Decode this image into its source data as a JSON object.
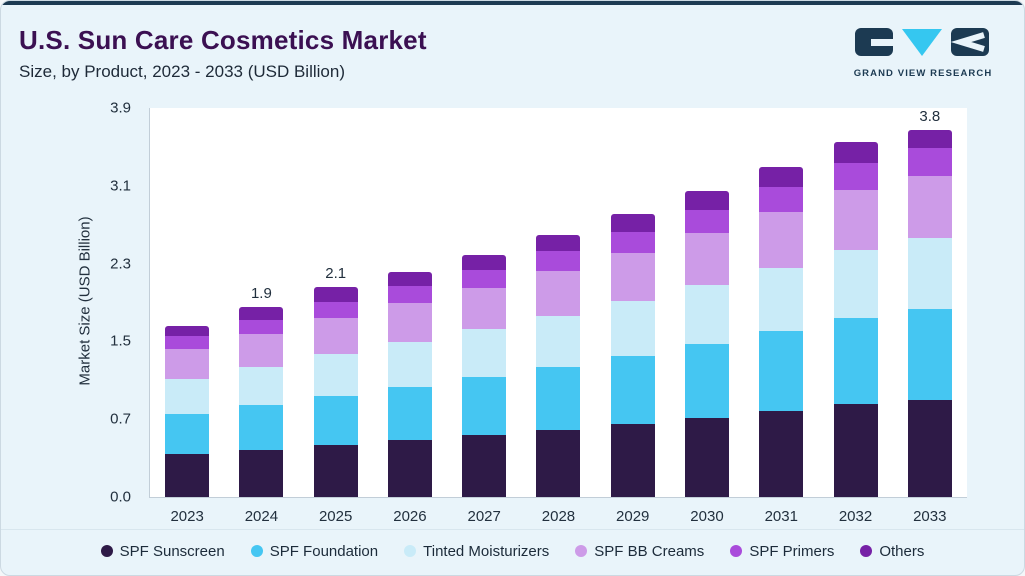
{
  "header": {
    "title": "U.S. Sun Care Cosmetics Market",
    "subtitle": "Size, by Product, 2023 - 2033 (USD Billion)",
    "logo_text": "GRAND VIEW RESEARCH"
  },
  "colors": {
    "accent_bar": "#1C3A52",
    "card_background": "#E9F4FA",
    "title": "#3B1052",
    "logo_navy": "#1C3A52",
    "logo_cyan": "#35C7F0"
  },
  "chart_data": {
    "type": "bar",
    "stacked": true,
    "title": "U.S. Sun Care Cosmetics Market",
    "subtitle": "Size, by Product, 2023 - 2033 (USD Billion)",
    "ylabel": "Market Size (USD Billion)",
    "xlabel": "",
    "ylim": [
      0,
      3.9
    ],
    "y_ticks": [
      "3.9",
      "3.1",
      "2.3",
      "1.5",
      "0.7",
      "0.0"
    ],
    "grid": false,
    "legend_position": "bottom",
    "categories": [
      "2023",
      "2024",
      "2025",
      "2026",
      "2027",
      "2028",
      "2029",
      "2030",
      "2031",
      "2032",
      "2033"
    ],
    "series": [
      {
        "name": "SPF Sunscreen",
        "color": "#2E1A47",
        "values": [
          0.43,
          0.47,
          0.52,
          0.57,
          0.62,
          0.67,
          0.73,
          0.79,
          0.86,
          0.93,
          1.01
        ]
      },
      {
        "name": "SPF Foundation",
        "color": "#45C6F2",
        "values": [
          0.4,
          0.45,
          0.49,
          0.53,
          0.58,
          0.63,
          0.68,
          0.74,
          0.8,
          0.86,
          0.94
        ]
      },
      {
        "name": "Tinted Moisturizers",
        "color": "#C9EBF8",
        "values": [
          0.35,
          0.38,
          0.42,
          0.45,
          0.48,
          0.52,
          0.56,
          0.6,
          0.64,
          0.69,
          0.73
        ]
      },
      {
        "name": "SPF BB Creams",
        "color": "#CD9BE8",
        "values": [
          0.3,
          0.33,
          0.36,
          0.39,
          0.42,
          0.45,
          0.48,
          0.52,
          0.56,
          0.6,
          0.64
        ]
      },
      {
        "name": "SPF Primers",
        "color": "#A94BDB",
        "values": [
          0.13,
          0.14,
          0.16,
          0.17,
          0.18,
          0.2,
          0.21,
          0.23,
          0.25,
          0.27,
          0.29
        ]
      },
      {
        "name": "Others",
        "color": "#7621A6",
        "values": [
          0.1,
          0.13,
          0.15,
          0.14,
          0.15,
          0.16,
          0.18,
          0.19,
          0.2,
          0.21,
          0.19
        ]
      }
    ],
    "bar_labels": {
      "2024": "1.9",
      "2025": "2.1",
      "2033": "3.8"
    }
  }
}
